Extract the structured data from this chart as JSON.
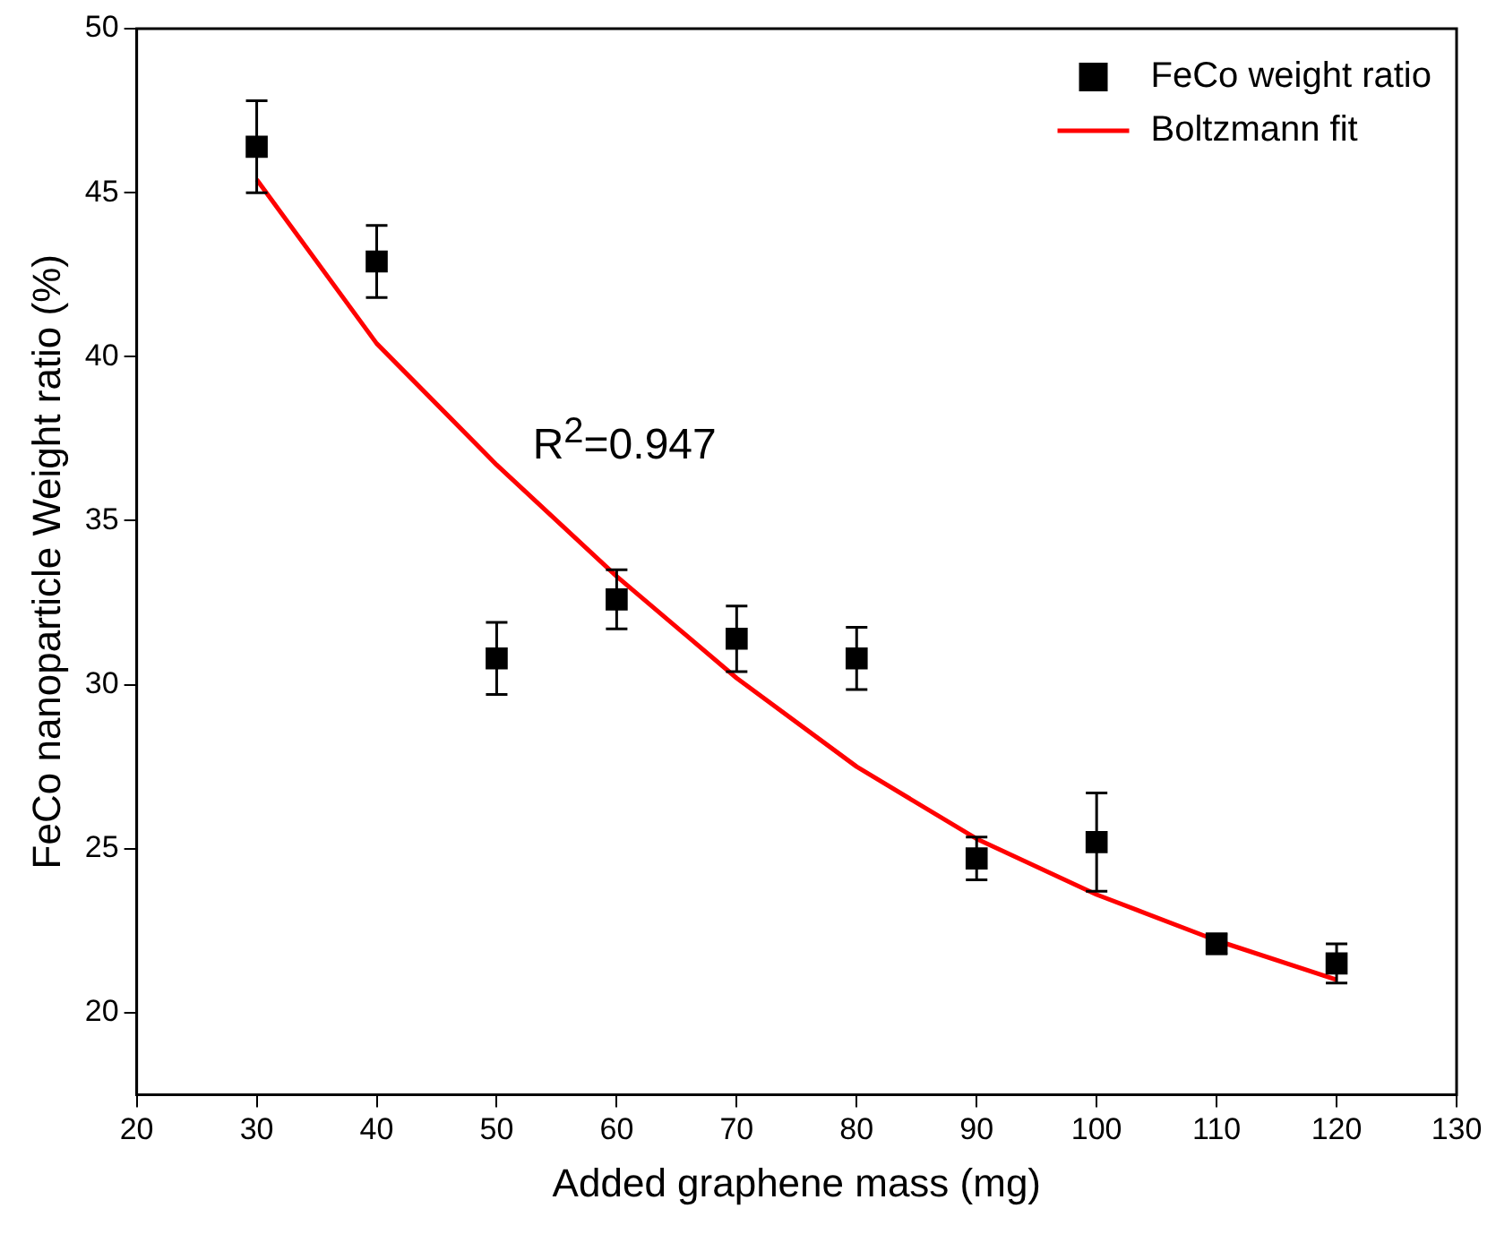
{
  "chart_data": {
    "type": "scatter",
    "xlabel": "Added graphene mass (mg)",
    "ylabel": "FeCo nanoparticle Weight ratio (%)",
    "xlim": [
      20,
      130
    ],
    "xticks": [
      20,
      30,
      40,
      50,
      60,
      70,
      80,
      90,
      100,
      110,
      120,
      130
    ],
    "ylim": [
      17.5,
      50
    ],
    "yticks": [
      20,
      25,
      30,
      35,
      40,
      45,
      50
    ],
    "legend": "top right",
    "grid": false,
    "annotations": [
      "R$^{2}$=0.947"
    ],
    "series": [
      {
        "name": "FeCo weight ratio",
        "type": "scatter",
        "color": "#000000",
        "marker": "square",
        "x": [
          30,
          40,
          50,
          60,
          70,
          80,
          90,
          100,
          110,
          120
        ],
        "values": [
          46.4,
          42.9,
          30.8,
          32.6,
          31.4,
          30.8,
          24.7,
          25.2,
          22.1,
          21.5
        ],
        "errors": [
          1.4,
          1.1,
          1.1,
          0.9,
          1.0,
          0.95,
          0.65,
          1.5,
          0.3,
          0.6
        ]
      },
      {
        "name": "Boltzmann fit",
        "type": "line",
        "color": "#ff0000",
        "marker": "none",
        "x": [
          30,
          40,
          50,
          60,
          70,
          80,
          90,
          100,
          110,
          120
        ],
        "values": [
          45.4,
          40.4,
          36.7,
          33.3,
          30.2,
          27.5,
          25.3,
          23.6,
          22.2,
          21.0
        ]
      }
    ]
  }
}
